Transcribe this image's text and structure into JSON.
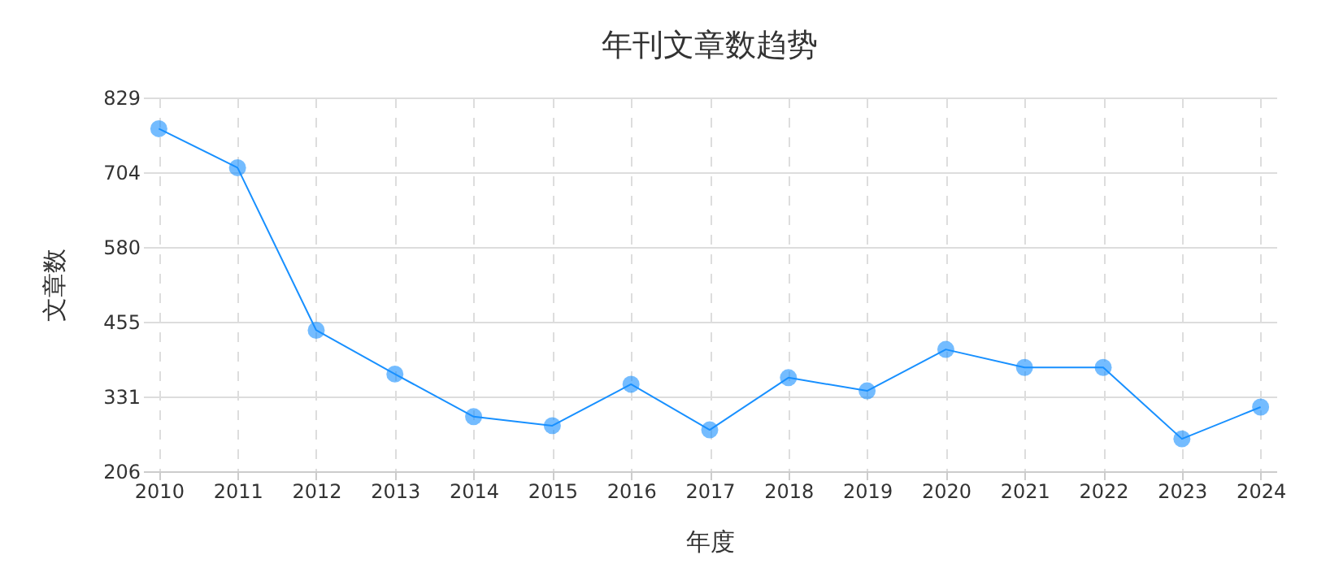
{
  "chart_data": {
    "type": "line",
    "title": "年刊文章数趋势",
    "xlabel": "年度",
    "ylabel": "文章数",
    "categories": [
      "2010",
      "2011",
      "2012",
      "2013",
      "2014",
      "2015",
      "2016",
      "2017",
      "2018",
      "2019",
      "2020",
      "2021",
      "2022",
      "2023",
      "2024"
    ],
    "series": [
      {
        "color": "#1890ff",
        "values": [
          777,
          712,
          441,
          368,
          297,
          282,
          351,
          275,
          362,
          340,
          409,
          379,
          379,
          260,
          313
        ]
      }
    ],
    "ylim": [
      206,
      829
    ],
    "yticks": [
      206,
      331,
      455,
      580,
      704,
      829
    ],
    "grid": true,
    "marker": "circle",
    "line_style": "solid"
  }
}
